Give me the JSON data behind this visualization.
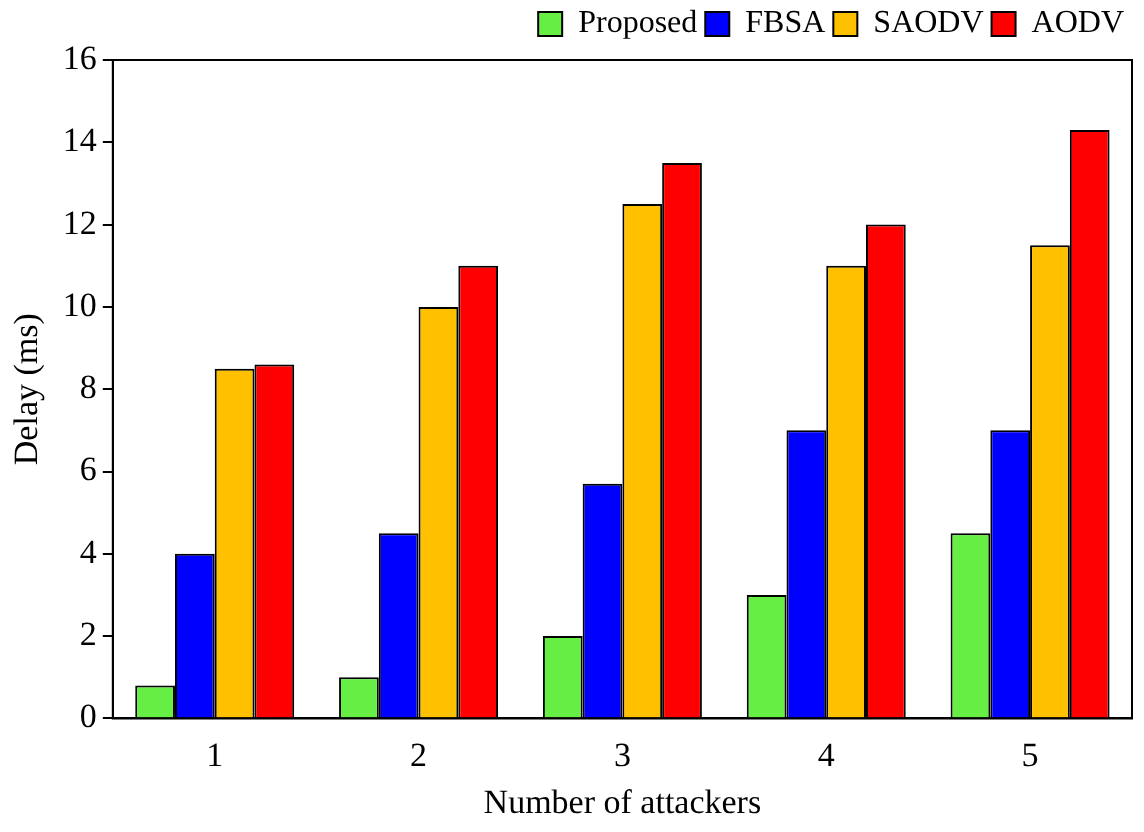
{
  "chart_data": {
    "type": "bar",
    "xlabel": "Number of attackers",
    "ylabel": "Delay (ms)",
    "categories": [
      "1",
      "2",
      "3",
      "4",
      "5"
    ],
    "series": [
      {
        "name": "Proposed",
        "color": "#66ee44",
        "values": [
          0.8,
          1,
          2,
          3,
          4.5
        ]
      },
      {
        "name": "FBSA",
        "color": "#0000ff",
        "values": [
          4,
          4.5,
          5.7,
          7,
          7
        ]
      },
      {
        "name": "SAODV",
        "color": "#ffc000",
        "values": [
          8.5,
          10,
          12.5,
          11,
          11.5
        ]
      },
      {
        "name": "AODV",
        "color": "#ff0000",
        "values": [
          8.6,
          11,
          13.5,
          12,
          14.3
        ]
      }
    ],
    "ylim": [
      0,
      16
    ],
    "yticks": [
      0,
      2,
      4,
      6,
      8,
      10,
      12,
      14,
      16
    ],
    "grid": false,
    "legend": "top right"
  }
}
